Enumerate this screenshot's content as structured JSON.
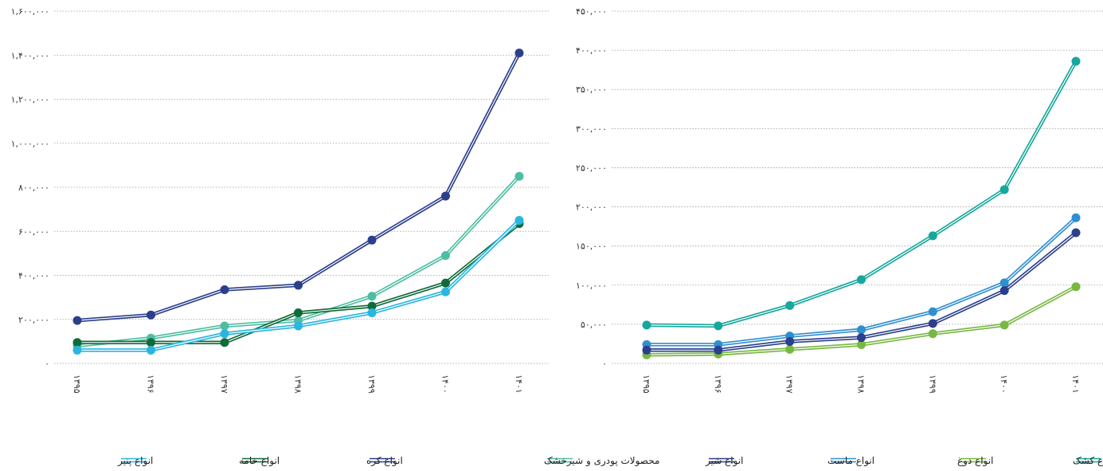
{
  "chart_data": [
    {
      "type": "line",
      "title": "",
      "xlabel": "",
      "ylabel": "",
      "categories": [
        "۱۳۹۵",
        "۱۳۹۶",
        "۱۳۹۷",
        "۱۳۹۸",
        "۱۳۹۹",
        "۱۴۰۰",
        "۱۴۰۱"
      ],
      "yticks": [
        0,
        200000,
        400000,
        600000,
        800000,
        1000000,
        1200000,
        1400000,
        1600000
      ],
      "ytick_labels": [
        "۰",
        "۲۰۰,۰۰۰",
        "۴۰۰,۰۰۰",
        "۶۰۰,۰۰۰",
        "۸۰۰,۰۰۰",
        "۱,۰۰۰,۰۰۰",
        "۱,۲۰۰,۰۰۰",
        "۱,۴۰۰,۰۰۰",
        "۱,۶۰۰,۰۰۰"
      ],
      "ylim": [
        0,
        1600000
      ],
      "grid": "horizontal dotted",
      "legend_position": "bottom",
      "series": [
        {
          "name": "محصولات پودری و شیرخشک",
          "color": "#4dbea4",
          "values": [
            80000,
            115000,
            170000,
            195000,
            305000,
            490000,
            850000
          ]
        },
        {
          "name": "انواع کره",
          "color": "#2b3f8c",
          "values": [
            195000,
            220000,
            335000,
            355000,
            560000,
            760000,
            1410000
          ]
        },
        {
          "name": "انواع خامه",
          "color": "#0f6b3a",
          "values": [
            95000,
            95000,
            95000,
            230000,
            260000,
            365000,
            635000
          ]
        },
        {
          "name": "انواع پنیر",
          "color": "#29b6e0",
          "values": [
            60000,
            60000,
            135000,
            170000,
            230000,
            325000,
            650000
          ]
        }
      ]
    },
    {
      "type": "line",
      "title": "",
      "xlabel": "",
      "ylabel": "",
      "categories": [
        "۱۳۹۵",
        "۱۳۹۶",
        "۱۳۹۷",
        "۱۳۹۸",
        "۱۳۹۹",
        "۱۴۰۰",
        "۱۴۰۱"
      ],
      "yticks": [
        0,
        50000,
        100000,
        150000,
        200000,
        250000,
        300000,
        350000,
        400000,
        450000
      ],
      "ytick_labels": [
        "۰",
        "۵۰,۰۰۰",
        "۱۰۰,۰۰۰",
        "۱۵۰,۰۰۰",
        "۲۰۰,۰۰۰",
        "۲۵۰,۰۰۰",
        "۳۰۰,۰۰۰",
        "۳۵۰,۰۰۰",
        "۴۰۰,۰۰۰",
        "۴۵۰,۰۰۰"
      ],
      "ylim": [
        0,
        450000
      ],
      "grid": "horizontal dotted",
      "legend_position": "bottom",
      "series": [
        {
          "name": "انواع کشک",
          "color": "#16a79d",
          "values": [
            49000,
            48000,
            74000,
            107000,
            163000,
            222000,
            386000
          ]
        },
        {
          "name": "انواع دوغ",
          "color": "#77b843",
          "values": [
            11000,
            12000,
            18000,
            24000,
            38000,
            49000,
            98000
          ]
        },
        {
          "name": "انواع ماست",
          "color": "#2f8fd0",
          "values": [
            24000,
            24000,
            35000,
            43000,
            66000,
            103000,
            186000
          ]
        },
        {
          "name": "انواع شیر",
          "color": "#2b3f8c",
          "values": [
            17000,
            17000,
            28000,
            33000,
            51000,
            93000,
            167000
          ]
        }
      ]
    }
  ]
}
